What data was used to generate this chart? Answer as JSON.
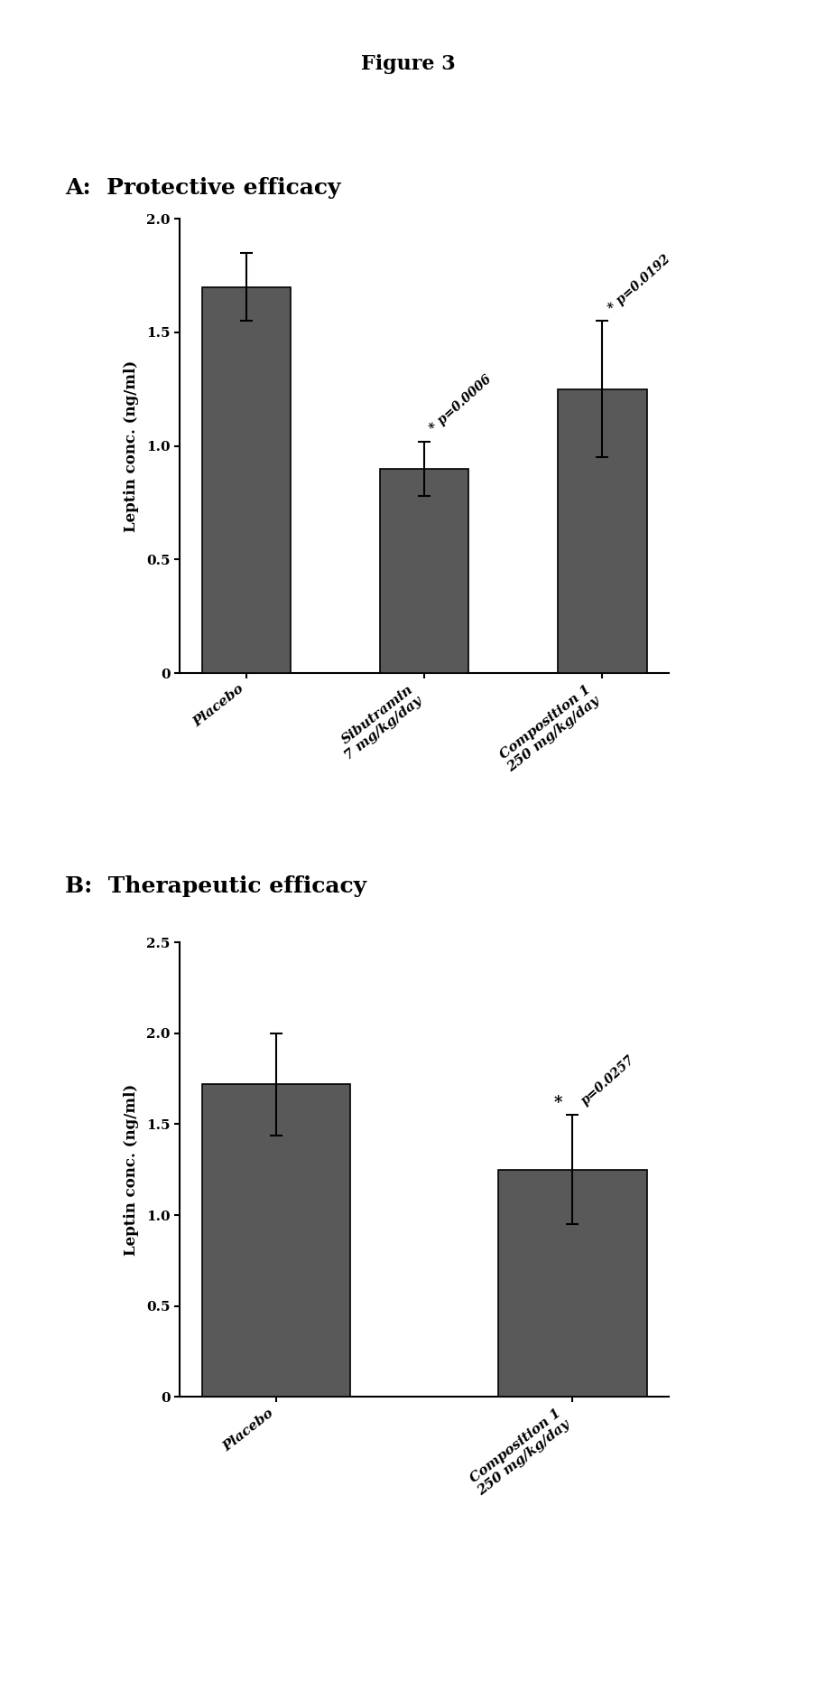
{
  "figure_title": "Figure 3",
  "panel_A_title": "A:  Protective efficacy",
  "panel_B_title": "B:  Therapeutic efficacy",
  "panel_A": {
    "categories": [
      "Placebo",
      "Sibutramin\n7 mg/kg/day",
      "Composition 1\n250 mg/kg/day"
    ],
    "values": [
      1.7,
      0.9,
      1.25
    ],
    "errors": [
      0.15,
      0.12,
      0.3
    ],
    "ylabel": "Leptin conc. (ng/ml)",
    "ylim": [
      0,
      2.0
    ],
    "yticks": [
      0,
      0.5,
      1.0,
      1.5,
      2.0
    ],
    "ytick_labels": [
      "0",
      "0.5",
      "1.0",
      "1.5",
      "2.0"
    ],
    "annot1_text": "* p=0.0006",
    "annot2_text": "* p=0.0192"
  },
  "panel_B": {
    "categories": [
      "Placebo",
      "Composition 1\n250 mg/kg/day"
    ],
    "values": [
      1.72,
      1.25
    ],
    "errors": [
      0.28,
      0.3
    ],
    "ylabel": "Leptin conc. (ng/ml)",
    "ylim": [
      0,
      2.5
    ],
    "yticks": [
      0,
      0.5,
      1.0,
      1.5,
      2.0,
      2.5
    ],
    "ytick_labels": [
      "0",
      "0.5",
      "1.0",
      "1.5",
      "2.0",
      "2.5"
    ],
    "annot1_text": "p=0.0257",
    "annot1_symbol": "*"
  },
  "bar_color": "#595959",
  "bar_edgecolor": "#000000",
  "bar_width": 0.5,
  "background_color": "#ffffff",
  "figure_title_fontsize": 16,
  "panel_label_fontsize": 18,
  "axis_label_fontsize": 12,
  "tick_fontsize": 11,
  "annot_fontsize": 10
}
